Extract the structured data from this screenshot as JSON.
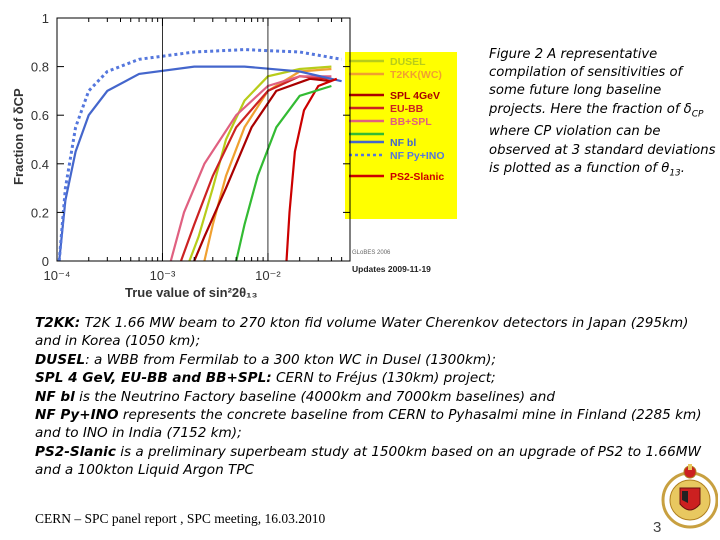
{
  "caption": {
    "prefix": "Figure 2 A representative compilation of sensitivities of some future long baseline projects. Here the fraction of ",
    "delta": "δ",
    "cp_sub": "CP",
    "mid": " where CP violation can be observed at 3 standard deviations is plotted as a function of ",
    "theta": "θ",
    "theta_sub": "13",
    "end": "."
  },
  "body": {
    "t2kk_label": "T2KK:",
    "t2kk_text": " T2K 1.66 MW beam to 270 kton fid volume Water Cherenkov detectors in Japan (295km) and in Korea (1050 km);",
    "dusel_label": "DUSEL",
    "dusel_text": ": a WBB from Fermilab to a 300 kton WC in Dusel (1300km);",
    "spl_label": "SPL 4 GeV, EU-BB and BB+SPL:",
    "spl_text": " CERN to Fréjus (130km) project;",
    "nfbl_label": "NF bl",
    "nfbl_text": " is the Neutrino Factory baseline (4000km and 7000km baselines) and",
    "nfpy_label": "NF Py+INO",
    "nfpy_text": " represents the concrete baseline from CERN to Pyhasalmi mine in Finland (2285 km) and to INO in India (7152 km);",
    "ps2_label": "PS2-Slanic",
    "ps2_text": " is a preliminary superbeam study at 1500km based on an upgrade of PS2 to 1.66MW and a 100kton Liquid Argon TPC"
  },
  "footer": "CERN – SPC panel report , SPC  meeting, 16.03.2010",
  "page_number": "3",
  "chart_data": {
    "type": "line",
    "title": "",
    "xlabel": "True value of sin²2θ₁₃",
    "ylabel": "Fraction of δCP",
    "x_scale": "log",
    "xlim": [
      0.0001,
      0.06
    ],
    "ylim": [
      0,
      1
    ],
    "x_ticks": [
      {
        "value": 0.0001,
        "label": "10⁻⁴"
      },
      {
        "value": 0.001,
        "label": "10⁻³"
      },
      {
        "value": 0.01,
        "label": "10⁻²"
      }
    ],
    "y_ticks": [
      0,
      0.2,
      0.4,
      0.6,
      0.8,
      1
    ],
    "y_tick_labels": [
      "0",
      "0.2",
      "0.4",
      "0.6",
      "0.8",
      "1"
    ],
    "grid": false,
    "legend_position": "right",
    "legend_background": "#ffff00",
    "annotations": [
      "GLoBES 2006",
      "Updates 2009-11-19"
    ],
    "series": [
      {
        "name": "DUSEL",
        "color": "#b8cc1a",
        "dash": "solid",
        "points": [
          [
            0.0018,
            0
          ],
          [
            0.0022,
            0.1
          ],
          [
            0.003,
            0.3
          ],
          [
            0.004,
            0.5
          ],
          [
            0.006,
            0.66
          ],
          [
            0.01,
            0.76
          ],
          [
            0.02,
            0.79
          ],
          [
            0.04,
            0.8
          ]
        ]
      },
      {
        "name": "T2KK(WC)",
        "color": "#f0a030",
        "dash": "solid",
        "points": [
          [
            0.0025,
            0
          ],
          [
            0.003,
            0.15
          ],
          [
            0.004,
            0.35
          ],
          [
            0.006,
            0.55
          ],
          [
            0.01,
            0.7
          ],
          [
            0.02,
            0.78
          ],
          [
            0.04,
            0.79
          ]
        ]
      },
      {
        "name": "SPL 4GeV",
        "color": "#aa0000",
        "dash": "solid",
        "points": [
          [
            0.002,
            0
          ],
          [
            0.0025,
            0.1
          ],
          [
            0.004,
            0.3
          ],
          [
            0.007,
            0.55
          ],
          [
            0.012,
            0.7
          ],
          [
            0.025,
            0.75
          ],
          [
            0.04,
            0.74
          ]
        ]
      },
      {
        "name": "EU-BB",
        "color": "#cc2222",
        "dash": "solid",
        "points": [
          [
            0.0015,
            0
          ],
          [
            0.002,
            0.15
          ],
          [
            0.003,
            0.35
          ],
          [
            0.005,
            0.55
          ],
          [
            0.01,
            0.7
          ],
          [
            0.02,
            0.76
          ],
          [
            0.04,
            0.75
          ]
        ]
      },
      {
        "name": "BB+SPL",
        "color": "#e06080",
        "dash": "solid",
        "points": [
          [
            0.0012,
            0
          ],
          [
            0.0016,
            0.2
          ],
          [
            0.0025,
            0.4
          ],
          [
            0.005,
            0.6
          ],
          [
            0.01,
            0.72
          ],
          [
            0.02,
            0.76
          ],
          [
            0.04,
            0.76
          ]
        ]
      },
      {
        "name": "NF bl",
        "color": "#4466cc",
        "dash": "solid",
        "points": [
          [
            0.000105,
            0
          ],
          [
            0.00012,
            0.25
          ],
          [
            0.00015,
            0.45
          ],
          [
            0.0002,
            0.6
          ],
          [
            0.0003,
            0.7
          ],
          [
            0.0006,
            0.77
          ],
          [
            0.002,
            0.8
          ],
          [
            0.006,
            0.8
          ],
          [
            0.02,
            0.78
          ],
          [
            0.05,
            0.74
          ]
        ]
      },
      {
        "name": "NF Py+INO",
        "color": "#5577dd",
        "dash": "dotted",
        "points": [
          [
            0.000105,
            0
          ],
          [
            0.00012,
            0.3
          ],
          [
            0.00015,
            0.55
          ],
          [
            0.0002,
            0.7
          ],
          [
            0.0003,
            0.78
          ],
          [
            0.0006,
            0.83
          ],
          [
            0.002,
            0.86
          ],
          [
            0.006,
            0.87
          ],
          [
            0.02,
            0.86
          ],
          [
            0.05,
            0.83
          ]
        ]
      },
      {
        "name": "PS2-Slanic",
        "color": "#cc0000",
        "dash": "solid",
        "points": [
          [
            0.015,
            0
          ],
          [
            0.016,
            0.2
          ],
          [
            0.018,
            0.45
          ],
          [
            0.022,
            0.62
          ],
          [
            0.03,
            0.72
          ],
          [
            0.045,
            0.75
          ]
        ]
      },
      {
        "name": "",
        "color": "#33bb33",
        "dash": "solid",
        "points": [
          [
            0.005,
            0
          ],
          [
            0.006,
            0.15
          ],
          [
            0.008,
            0.35
          ],
          [
            0.012,
            0.55
          ],
          [
            0.02,
            0.68
          ],
          [
            0.04,
            0.72
          ]
        ]
      }
    ]
  }
}
